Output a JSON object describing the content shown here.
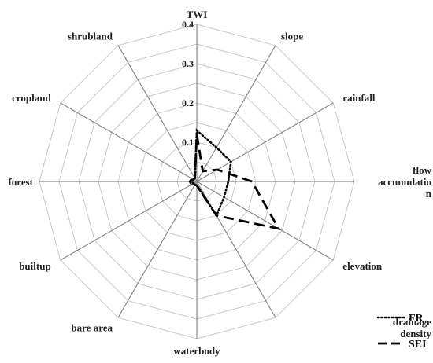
{
  "chart_data": {
    "type": "radar",
    "categories": [
      "TWI",
      "slope",
      "rainfall",
      "flow accumulation",
      "elevation",
      "drainage density",
      "waterbody",
      "bare area",
      "builtup",
      "forest",
      "cropland",
      "shrubland"
    ],
    "category_display": [
      [
        "TWI"
      ],
      [
        "slope"
      ],
      [
        "rainfall"
      ],
      [
        "flow",
        "accumulatio",
        "n"
      ],
      [
        "elevation"
      ],
      [
        "drainage",
        "density"
      ],
      [
        "waterbody"
      ],
      [
        "bare area"
      ],
      [
        "builtup"
      ],
      [
        "forest"
      ],
      [
        "cropland"
      ],
      [
        "shrubland"
      ]
    ],
    "series": [
      {
        "name": "FR",
        "style": "dotted",
        "values": [
          0.13,
          0.1,
          0.1,
          0.08,
          0.08,
          0.1,
          0.01,
          0.01,
          0.01,
          0.02,
          0.01,
          0.01
        ]
      },
      {
        "name": "SEI",
        "style": "dashed",
        "values": [
          0.12,
          0.03,
          0.06,
          0.14,
          0.24,
          0.1,
          0.01,
          0.01,
          0.01,
          0.015,
          0.01,
          0.01
        ]
      }
    ],
    "rlim": [
      0,
      0.4
    ],
    "ticks": [
      "0",
      "0.1",
      "0.2",
      "0.3",
      "0.4"
    ],
    "tick_values": [
      0,
      0.1,
      0.2,
      0.3,
      0.4
    ],
    "grid_rings": 8,
    "legend_position": "bottom-right",
    "colors": {
      "series": "#000000",
      "grid": "#c8c8c8",
      "spoke": "#8a8a8a"
    }
  }
}
